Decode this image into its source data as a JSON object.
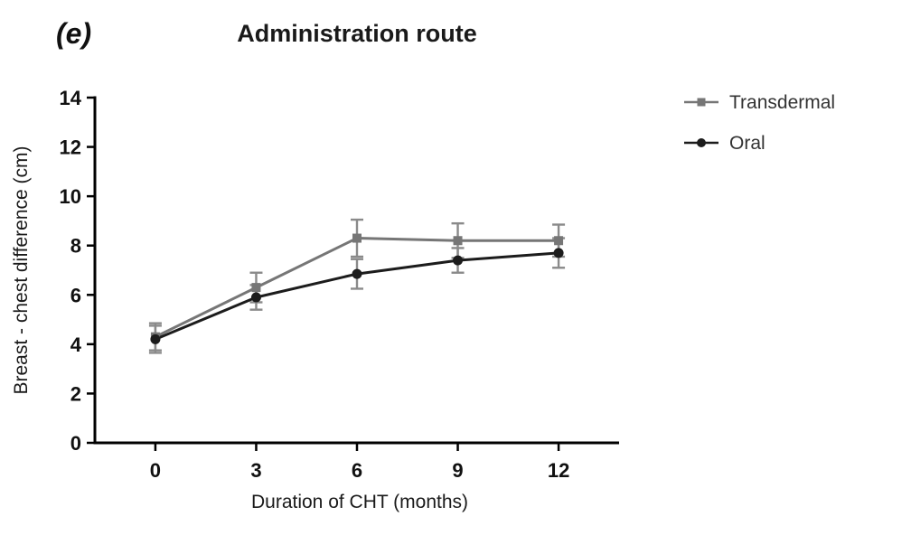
{
  "panel_label": "(e)",
  "colors": {
    "axis": "#000000",
    "error_bar": "#8a8a8a",
    "transdermal": "#767676",
    "oral": "#1c1c1c",
    "background": "#ffffff"
  },
  "chart_data": {
    "type": "line",
    "title": "Administration route",
    "xlabel": "Duration of CHT (months)",
    "ylabel": "Breast - chest difference (cm)",
    "x": [
      0,
      3,
      6,
      9,
      12
    ],
    "xticks": [
      0,
      3,
      6,
      9,
      12
    ],
    "yticks": [
      0,
      2,
      4,
      6,
      8,
      10,
      12,
      14
    ],
    "xlim": [
      -1.8,
      13.8
    ],
    "ylim": [
      0,
      14
    ],
    "grid": false,
    "legend_position": "right",
    "series": [
      {
        "name": "Transdermal",
        "marker": "square",
        "color": "#767676",
        "values": [
          4.3,
          6.3,
          8.3,
          8.2,
          8.2
        ],
        "errors": [
          0.55,
          0.6,
          0.75,
          0.7,
          0.65
        ]
      },
      {
        "name": "Oral",
        "marker": "circle",
        "color": "#1c1c1c",
        "values": [
          4.2,
          5.9,
          6.85,
          7.4,
          7.7
        ],
        "errors": [
          0.55,
          0.5,
          0.6,
          0.5,
          0.6
        ]
      }
    ]
  }
}
